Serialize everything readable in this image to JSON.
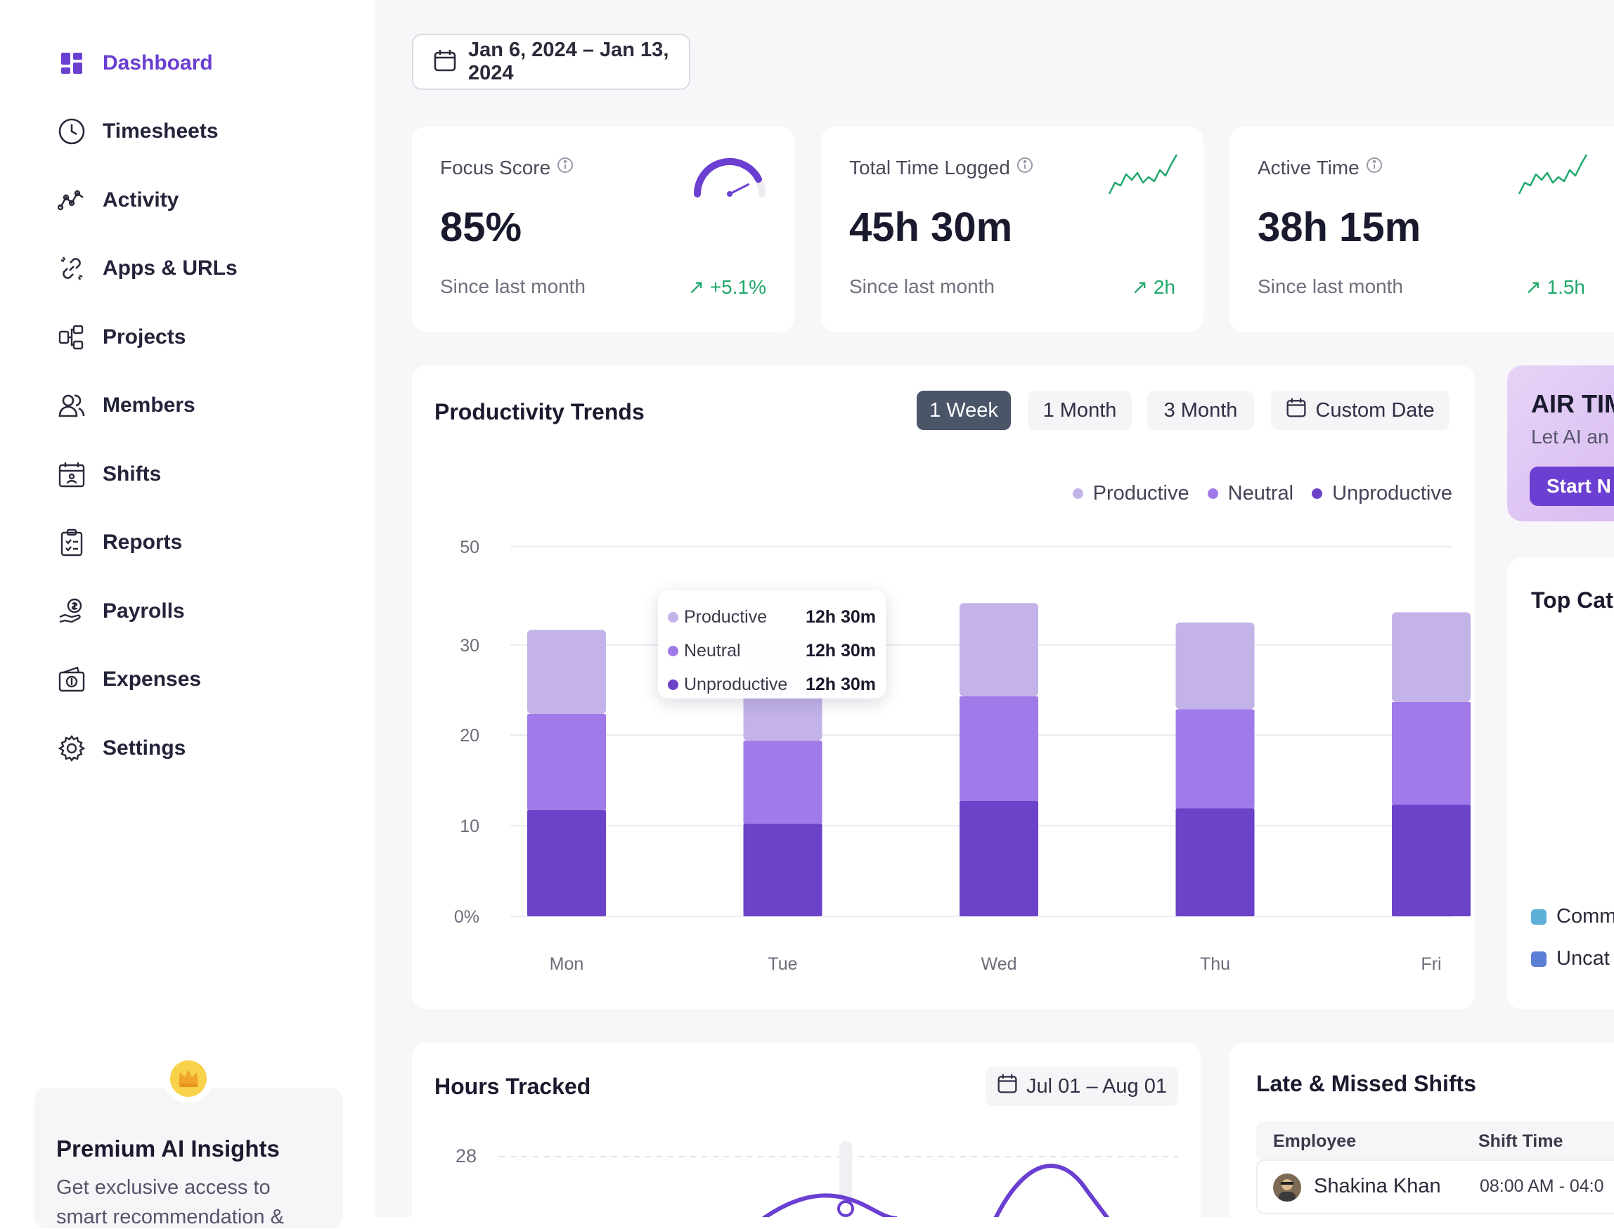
{
  "sidebar": {
    "items": [
      {
        "label": "Dashboard",
        "icon": "dashboard-icon",
        "active": true
      },
      {
        "label": "Timesheets",
        "icon": "clock-icon"
      },
      {
        "label": "Activity",
        "icon": "activity-icon"
      },
      {
        "label": "Apps & URLs",
        "icon": "link-icon"
      },
      {
        "label": "Projects",
        "icon": "projects-icon"
      },
      {
        "label": "Members",
        "icon": "members-icon"
      },
      {
        "label": "Shifts",
        "icon": "calendar-user-icon"
      },
      {
        "label": "Reports",
        "icon": "clipboard-icon"
      },
      {
        "label": "Payrolls",
        "icon": "payroll-icon"
      },
      {
        "label": "Expenses",
        "icon": "wallet-icon"
      },
      {
        "label": "Settings",
        "icon": "gear-icon"
      }
    ],
    "premium": {
      "title": "Premium AI Insights",
      "description": "Get exclusive access to",
      "description_cut": "smart recommendation &",
      "icon": "crown-icon"
    }
  },
  "header": {
    "date_range": "Jan 6, 2024 – Jan 13, 2024"
  },
  "stats": [
    {
      "title": "Focus Score",
      "value": "85%",
      "since": "Since last month",
      "delta": "↗ +5.1%",
      "gauge_level": 0.85
    },
    {
      "title": "Total Time Logged",
      "value": "45h 30m",
      "since": "Since last month",
      "delta": "↗ 2h"
    },
    {
      "title": "Active Time",
      "value": "38h 15m",
      "since": "Since last month",
      "delta": "↗ 1.5h"
    }
  ],
  "productivity": {
    "title": "Productivity Trends",
    "tabs": [
      "1 Week",
      "1 Month",
      "3 Month",
      "Custom Date"
    ],
    "active_tab": "1 Week",
    "tooltip": {
      "rows": [
        {
          "label": "Productive",
          "value": "12h 30m"
        },
        {
          "label": "Neutral",
          "value": "12h 30m"
        },
        {
          "label": "Unproductive",
          "value": "12h 30m"
        }
      ]
    }
  },
  "chart_data": {
    "type": "bar",
    "stacked": true,
    "categories": [
      "Mon",
      "Tue",
      "Wed",
      "Thu",
      "Fri"
    ],
    "series": [
      {
        "name": "Unproductive",
        "color": "#6b42c8",
        "values": [
          11.5,
          10,
          12.5,
          11.7,
          12.1
        ]
      },
      {
        "name": "Neutral",
        "color": "#a07ae8",
        "values": [
          10.4,
          9,
          11.3,
          10.7,
          11.1
        ]
      },
      {
        "name": "Productive",
        "color": "#c3b3e9",
        "values": [
          9.1,
          10.2,
          10.1,
          9.4,
          9.7
        ]
      }
    ],
    "yticks": [
      "0%",
      "10",
      "20",
      "30",
      "50"
    ],
    "ylim": [
      0,
      40
    ],
    "legend": "top-right",
    "grid": true
  },
  "ai_card": {
    "title": "AIR TIM",
    "subtitle": "Let AI an",
    "button": "Start N"
  },
  "top_categories": {
    "title": "Top Cat",
    "legend": [
      {
        "label": "Comm",
        "color": "#5fb0d8"
      },
      {
        "label": "Uncat",
        "color": "#5b7fd6"
      }
    ]
  },
  "hours_tracked": {
    "title": "Hours Tracked",
    "date": "Jul 01 – Aug 01",
    "ytick": "28"
  },
  "late_shifts": {
    "title": "Late & Missed Shifts",
    "columns": [
      "Employee",
      "Shift Time"
    ],
    "rows": [
      {
        "employee": "Shakina Khan",
        "shift_time": "08:00 AM - 04:0"
      }
    ]
  }
}
